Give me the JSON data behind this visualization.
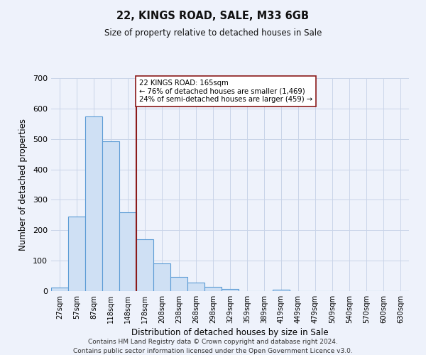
{
  "title": "22, KINGS ROAD, SALE, M33 6GB",
  "subtitle": "Size of property relative to detached houses in Sale",
  "xlabel": "Distribution of detached houses by size in Sale",
  "ylabel": "Number of detached properties",
  "bar_labels": [
    "27sqm",
    "57sqm",
    "87sqm",
    "118sqm",
    "148sqm",
    "178sqm",
    "208sqm",
    "238sqm",
    "268sqm",
    "298sqm",
    "329sqm",
    "359sqm",
    "389sqm",
    "419sqm",
    "449sqm",
    "479sqm",
    "509sqm",
    "540sqm",
    "570sqm",
    "600sqm",
    "630sqm"
  ],
  "bar_values": [
    12,
    245,
    575,
    493,
    260,
    170,
    90,
    47,
    27,
    13,
    8,
    0,
    0,
    5,
    0,
    0,
    0,
    0,
    0,
    0,
    0
  ],
  "bar_color": "#cfe0f4",
  "bar_edgecolor": "#5b9bd5",
  "property_line_idx": 4.5,
  "property_line_color": "#8b1a1a",
  "annotation_text": "22 KINGS ROAD: 165sqm\n← 76% of detached houses are smaller (1,469)\n24% of semi-detached houses are larger (459) →",
  "annotation_box_facecolor": "#ffffff",
  "annotation_box_edgecolor": "#8b1a1a",
  "ylim": [
    0,
    700
  ],
  "yticks": [
    0,
    100,
    200,
    300,
    400,
    500,
    600,
    700
  ],
  "background_color": "#eef2fb",
  "grid_color": "#c8d4e8",
  "footer_line1": "Contains HM Land Registry data © Crown copyright and database right 2024.",
  "footer_line2": "Contains public sector information licensed under the Open Government Licence v3.0."
}
